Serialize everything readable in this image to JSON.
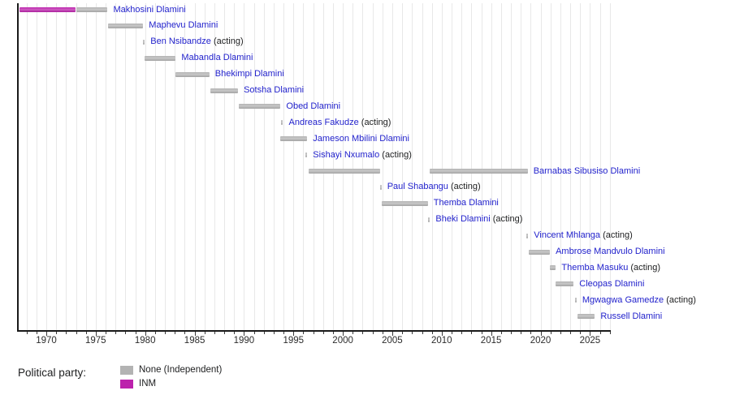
{
  "party_colors": {
    "none": "#b3b3b3",
    "INM": "#bc22ac"
  },
  "legend": {
    "title": "Political party:",
    "items": [
      {
        "label": "None (Independent)",
        "party": "none"
      },
      {
        "label": "INM",
        "party": "INM"
      }
    ]
  },
  "chart_data": {
    "type": "bar",
    "subtype": "timeline-gantt",
    "title": "",
    "xlabel": "",
    "ylabel": "",
    "x_axis": {
      "labeled_ticks": [
        1970,
        1975,
        1980,
        1985,
        1990,
        1995,
        2000,
        2005,
        2010,
        2015,
        2020,
        2025
      ],
      "minor_tick_step_years": 1,
      "minor_tick_start": 1968,
      "minor_tick_end": 2027,
      "range": [
        1967.1,
        2027.3
      ],
      "grid": "vertical-yearly"
    },
    "acting_suffix": " (acting)",
    "rows": [
      {
        "name": "Makhosini Dlamini",
        "acting": false,
        "segments": [
          {
            "start": 1967.3,
            "end": 1973.0,
            "party": "INM"
          },
          {
            "start": 1973.0,
            "end": 1976.2,
            "party": "none"
          }
        ]
      },
      {
        "name": "Maphevu Dlamini",
        "acting": false,
        "segments": [
          {
            "start": 1976.2,
            "end": 1979.8,
            "party": "none"
          }
        ]
      },
      {
        "name": "Ben Nsibandze",
        "acting": true,
        "segments": [
          {
            "start": 1979.8,
            "end": 1979.95,
            "party": "none"
          }
        ]
      },
      {
        "name": "Mabandla Dlamini",
        "acting": false,
        "segments": [
          {
            "start": 1979.95,
            "end": 1983.1,
            "party": "none"
          }
        ]
      },
      {
        "name": "Bhekimpi Dlamini",
        "acting": false,
        "segments": [
          {
            "start": 1983.1,
            "end": 1986.5,
            "party": "none"
          }
        ]
      },
      {
        "name": "Sotsha Dlamini",
        "acting": false,
        "segments": [
          {
            "start": 1986.6,
            "end": 1989.4,
            "party": "none"
          }
        ]
      },
      {
        "name": "Obed Dlamini",
        "acting": false,
        "segments": [
          {
            "start": 1989.5,
            "end": 1993.7,
            "party": "none"
          }
        ]
      },
      {
        "name": "Andreas Fakudze",
        "acting": true,
        "segments": [
          {
            "start": 1993.75,
            "end": 1993.95,
            "party": "none"
          }
        ]
      },
      {
        "name": "Jameson Mbilini Dlamini",
        "acting": false,
        "segments": [
          {
            "start": 1993.7,
            "end": 1996.4,
            "party": "none"
          }
        ]
      },
      {
        "name": "Sishayi Nxumalo",
        "acting": true,
        "segments": [
          {
            "start": 1996.2,
            "end": 1996.4,
            "party": "none"
          }
        ]
      },
      {
        "name": "Barnabas Sibusiso Dlamini",
        "acting": false,
        "segments": [
          {
            "start": 1996.5,
            "end": 2003.75,
            "party": "none"
          },
          {
            "start": 2008.8,
            "end": 2018.7,
            "party": "none"
          }
        ]
      },
      {
        "name": "Paul Shabangu",
        "acting": true,
        "segments": [
          {
            "start": 2003.75,
            "end": 2003.9,
            "party": "none"
          }
        ]
      },
      {
        "name": "Themba Dlamini",
        "acting": false,
        "segments": [
          {
            "start": 2003.9,
            "end": 2008.6,
            "party": "none"
          }
        ]
      },
      {
        "name": "Bheki Dlamini",
        "acting": true,
        "segments": [
          {
            "start": 2008.65,
            "end": 2008.8,
            "party": "none"
          }
        ]
      },
      {
        "name": "Vincent Mhlanga",
        "acting": true,
        "segments": [
          {
            "start": 2018.55,
            "end": 2018.75,
            "party": "none"
          }
        ]
      },
      {
        "name": "Ambrose Mandvulo Dlamini",
        "acting": false,
        "segments": [
          {
            "start": 2018.8,
            "end": 2020.95,
            "party": "none"
          }
        ]
      },
      {
        "name": "Themba Masuku",
        "acting": true,
        "segments": [
          {
            "start": 2020.95,
            "end": 2021.55,
            "party": "none"
          }
        ]
      },
      {
        "name": "Cleopas Dlamini",
        "acting": false,
        "segments": [
          {
            "start": 2021.55,
            "end": 2023.35,
            "party": "none"
          }
        ]
      },
      {
        "name": "Mgwagwa Gamedze",
        "acting": true,
        "segments": [
          {
            "start": 2023.45,
            "end": 2023.65,
            "party": "none"
          }
        ]
      },
      {
        "name": "Russell Dlamini",
        "acting": false,
        "segments": [
          {
            "start": 2023.7,
            "end": 2025.5,
            "party": "none"
          }
        ]
      }
    ]
  }
}
